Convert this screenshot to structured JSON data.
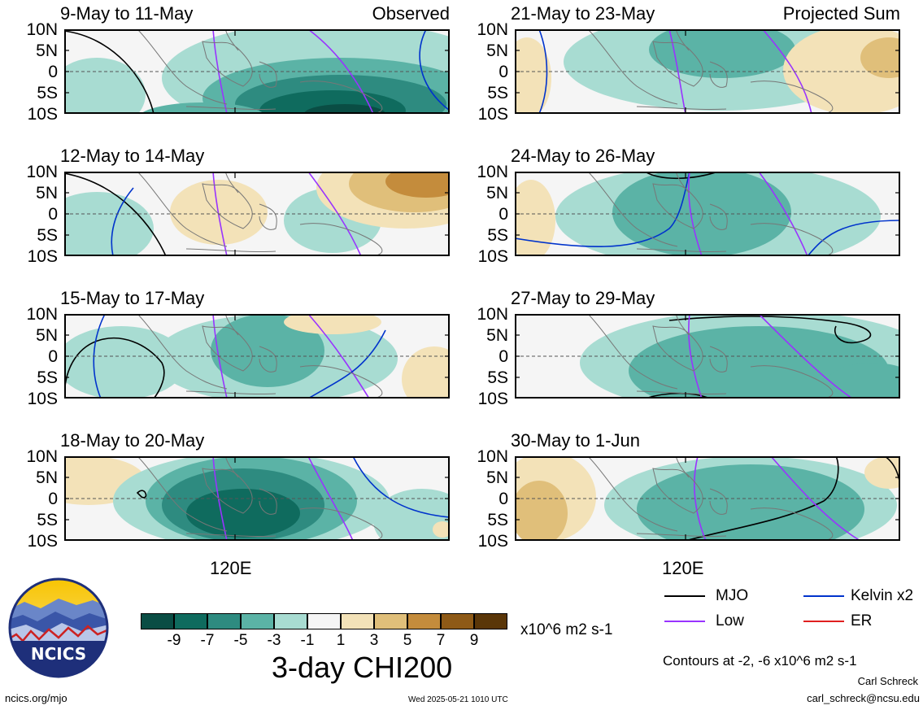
{
  "chart_data": {
    "type": "heatmap",
    "variable": "3-day CHI200",
    "units": "x10^6 m2 s-1",
    "lat_ticks": [
      "10N",
      "5N",
      "0",
      "5S",
      "10S"
    ],
    "lon_tick": "120E",
    "colorbar": {
      "labels": [
        "-9",
        "-7",
        "-5",
        "-3",
        "-1",
        "1",
        "3",
        "5",
        "7",
        "9"
      ],
      "colors": [
        "#0a4d44",
        "#0f6b5e",
        "#2e8b80",
        "#5bb3a6",
        "#a8dcd2",
        "#f5f5f5",
        "#f3e2b8",
        "#e0bf7a",
        "#c48c3c",
        "#8e5a17",
        "#5a3608"
      ]
    },
    "contours_note": "Contours at -2, -6 x10^6 m2 s-1",
    "legend": [
      {
        "name": "MJO",
        "color": "#000000"
      },
      {
        "name": "Kelvin x2",
        "color": "#0033cc"
      },
      {
        "name": "Low",
        "color": "#9933ff"
      },
      {
        "name": "ER",
        "color": "#e02020"
      }
    ],
    "panels": [
      {
        "period": "9-May to 11-May",
        "tag": "Observed",
        "pattern": "obs1"
      },
      {
        "period": "12-May to 14-May",
        "tag": "",
        "pattern": "obs2"
      },
      {
        "period": "15-May to 17-May",
        "tag": "",
        "pattern": "obs3"
      },
      {
        "period": "18-May to 20-May",
        "tag": "",
        "pattern": "obs4"
      },
      {
        "period": "21-May to 23-May",
        "tag": "Projected Sum",
        "pattern": "proj1"
      },
      {
        "period": "24-May to 26-May",
        "tag": "",
        "pattern": "proj2"
      },
      {
        "period": "27-May to 29-May",
        "tag": "",
        "pattern": "proj3"
      },
      {
        "period": "30-May to 1-Jun",
        "tag": "",
        "pattern": "proj4"
      }
    ]
  },
  "footer": {
    "logo_text": "NCICS",
    "site": "ncics.org/mjo",
    "timestamp": "Wed 2025-05-21 1010 UTC",
    "author": "Carl Schreck",
    "email": "carl_schreck@ncsu.edu"
  }
}
